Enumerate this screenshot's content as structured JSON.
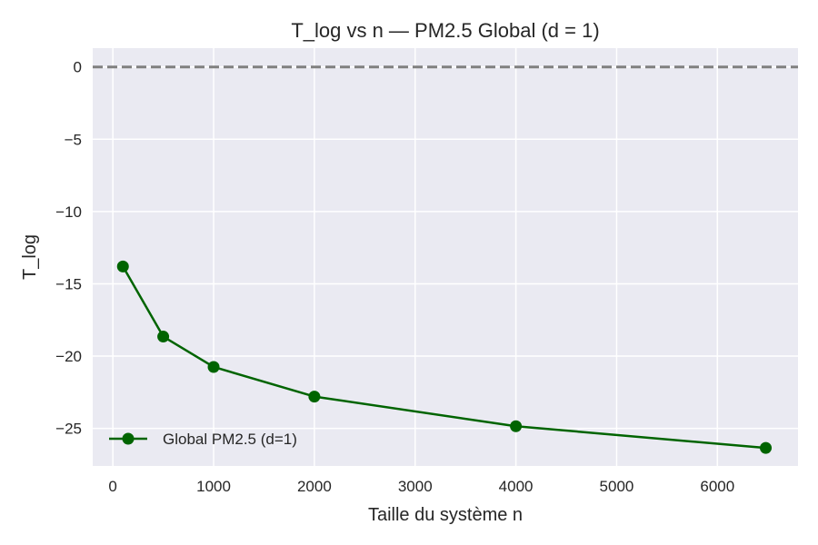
{
  "chart_data": {
    "type": "line",
    "title": "T_log vs n — PM2.5 Global (d = 1)",
    "xlabel": "Taille du système n",
    "ylabel": "T_log",
    "xlim": [
      -200,
      6800
    ],
    "ylim": [
      -27.6,
      1.3
    ],
    "xticks": [
      0,
      1000,
      2000,
      3000,
      4000,
      5000,
      6000
    ],
    "xtick_labels": [
      "0",
      "1000",
      "2000",
      "3000",
      "4000",
      "5000",
      "6000"
    ],
    "yticks": [
      0,
      -5,
      -10,
      -15,
      -20,
      -25
    ],
    "ytick_labels": [
      "0",
      "−5",
      "−10",
      "−15",
      "−20",
      "−25"
    ],
    "grid": true,
    "reference_line": {
      "y": 0,
      "style": "dashed",
      "color": "#808080"
    },
    "legend_position": "lower-left",
    "series": [
      {
        "name": "Global PM2.5 (d=1)",
        "color": "#006400",
        "marker": "circle",
        "x": [
          100,
          500,
          1000,
          2000,
          4000,
          6480
        ],
        "y": [
          -13.8,
          -18.65,
          -20.75,
          -22.8,
          -24.85,
          -26.35
        ]
      }
    ],
    "colors": {
      "background": "#EAEAF2",
      "grid": "#ffffff"
    }
  }
}
